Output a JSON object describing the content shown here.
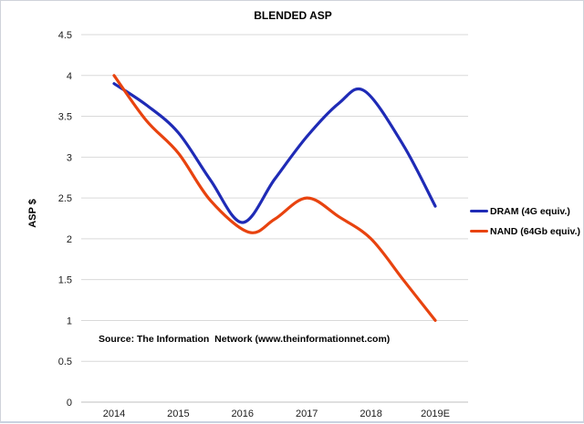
{
  "chart_data": {
    "type": "line",
    "title": "BLENDED ASP",
    "xlabel": "",
    "ylabel": "ASP $",
    "ylim": [
      0,
      4.5
    ],
    "ytick_step": 0.5,
    "grid": true,
    "legend_position": "right",
    "categories": [
      "2014",
      "2015",
      "2016",
      "2017",
      "2018",
      "2019E"
    ],
    "category_x": [
      2014,
      2015,
      2016,
      2017,
      2018,
      2019
    ],
    "source_note": "Source: The Information  Network (www.theinformationnet.com)",
    "gridline_color": "#d9d9d9",
    "axis_line_color": "#bfbfbf",
    "series": [
      {
        "name": "DRAM (4G equiv.)",
        "color": "#1f2bb6",
        "x": [
          2014,
          2014.5,
          2015,
          2015.5,
          2016,
          2016.5,
          2017,
          2017.5,
          2017.9,
          2018.5,
          2019
        ],
        "values": [
          3.9,
          3.64,
          3.3,
          2.72,
          2.2,
          2.73,
          3.25,
          3.66,
          3.81,
          3.15,
          2.4
        ]
      },
      {
        "name": "NAND (64Gb equiv.)",
        "color": "#e8430f",
        "x": [
          2014,
          2014.5,
          2015,
          2015.5,
          2016.1,
          2016.5,
          2017,
          2017.5,
          2018,
          2018.5,
          2019
        ],
        "values": [
          4.0,
          3.45,
          3.05,
          2.47,
          2.08,
          2.24,
          2.5,
          2.27,
          2.0,
          1.5,
          1.0
        ]
      }
    ]
  }
}
